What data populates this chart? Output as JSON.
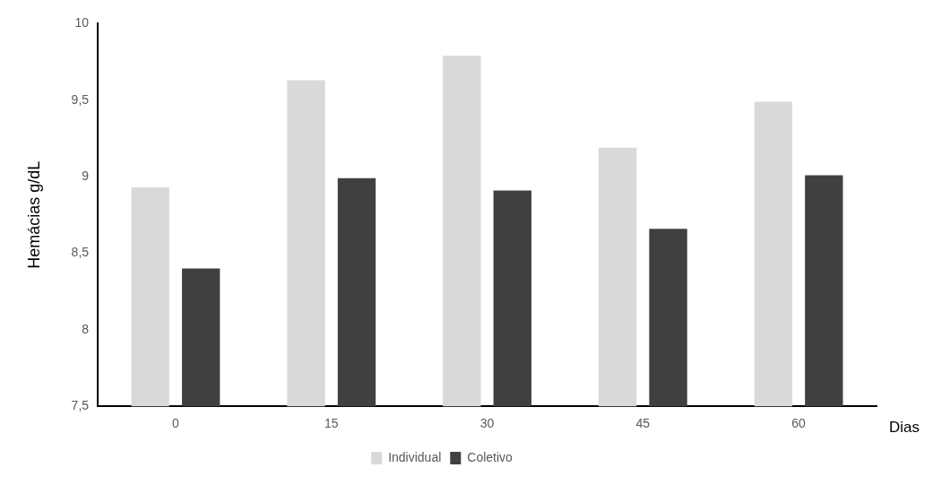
{
  "chart_data": {
    "type": "bar",
    "xlabel": "Dias",
    "ylabel": "Hemácias g/dL",
    "categories": [
      "0",
      "15",
      "30",
      "45",
      "60"
    ],
    "series": [
      {
        "name": "Individual",
        "color": "#d9d9d9",
        "values": [
          8.93,
          9.63,
          9.79,
          9.19,
          9.49
        ]
      },
      {
        "name": "Coletivo",
        "color": "#404040",
        "values": [
          8.4,
          8.99,
          8.91,
          8.66,
          9.01
        ]
      }
    ],
    "ylim": [
      7.5,
      10
    ],
    "yticks": [
      {
        "value": 7.5,
        "label": "7,5"
      },
      8,
      {
        "value": 8.5,
        "label": "8,5"
      },
      9,
      {
        "value": 9.5,
        "label": "9,5"
      },
      10
    ],
    "grid": false,
    "legend": "bottom"
  }
}
